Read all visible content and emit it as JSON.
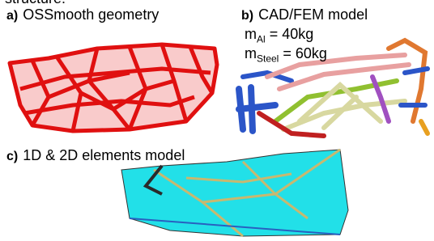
{
  "caption_fragment": "structure.",
  "panels": [
    {
      "label": "a)",
      "title": "OSSmooth geometry"
    },
    {
      "label": "b)",
      "title": "CAD/FEM model",
      "masses": [
        {
          "symbol": "m",
          "subscript": "Al",
          "value": "= 40kg"
        },
        {
          "symbol": "m",
          "subscript": "Steel",
          "value": "= 60kg"
        }
      ]
    },
    {
      "label": "c)",
      "title": "1D & 2D elements model"
    }
  ]
}
